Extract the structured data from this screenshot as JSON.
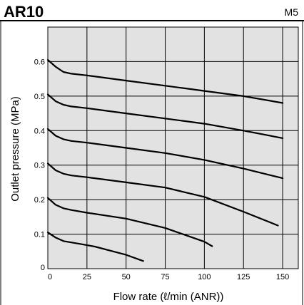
{
  "chart_data": {
    "type": "line",
    "title": "AR10",
    "subtitle": "M5",
    "xlabel": "Flow rate (ℓ/min (ANR))",
    "ylabel": "Outlet pressure (MPa)",
    "xlim": [
      0,
      160
    ],
    "ylim": [
      0,
      0.7
    ],
    "xticks": [
      0,
      25,
      50,
      75,
      100,
      125,
      150
    ],
    "xtick_labels": [
      "0",
      "25",
      "50",
      "75",
      "100",
      "125",
      "150"
    ],
    "yticks": [
      0,
      0.1,
      0.2,
      0.3,
      0.4,
      0.5,
      0.6
    ],
    "ytick_labels": [
      "0",
      "0.1",
      "0.2",
      "0.3",
      "0.4",
      "0.5",
      "0.6"
    ],
    "grid": true,
    "legend": false,
    "plot_background": "#e2e2e2",
    "line_color": "#000000",
    "series": [
      {
        "x": [
          0,
          5,
          10,
          15,
          25,
          50,
          75,
          100,
          125,
          150
        ],
        "y": [
          0.605,
          0.585,
          0.57,
          0.565,
          0.56,
          0.545,
          0.53,
          0.515,
          0.5,
          0.48
        ]
      },
      {
        "x": [
          0,
          5,
          10,
          15,
          25,
          50,
          75,
          100,
          125,
          150
        ],
        "y": [
          0.505,
          0.485,
          0.475,
          0.47,
          0.465,
          0.45,
          0.435,
          0.42,
          0.4,
          0.378
        ]
      },
      {
        "x": [
          0,
          5,
          10,
          15,
          25,
          50,
          75,
          100,
          125,
          150
        ],
        "y": [
          0.405,
          0.385,
          0.375,
          0.37,
          0.365,
          0.35,
          0.335,
          0.315,
          0.29,
          0.262
        ]
      },
      {
        "x": [
          0,
          5,
          10,
          15,
          25,
          50,
          75,
          100,
          125,
          147
        ],
        "y": [
          0.305,
          0.285,
          0.275,
          0.27,
          0.265,
          0.25,
          0.235,
          0.208,
          0.165,
          0.125
        ]
      },
      {
        "x": [
          0,
          5,
          10,
          15,
          25,
          50,
          75,
          100,
          105
        ],
        "y": [
          0.205,
          0.185,
          0.175,
          0.17,
          0.162,
          0.145,
          0.118,
          0.078,
          0.065
        ]
      },
      {
        "x": [
          0,
          5,
          10,
          20,
          30,
          40,
          50,
          61
        ],
        "y": [
          0.105,
          0.09,
          0.08,
          0.072,
          0.064,
          0.052,
          0.04,
          0.022
        ]
      }
    ]
  }
}
